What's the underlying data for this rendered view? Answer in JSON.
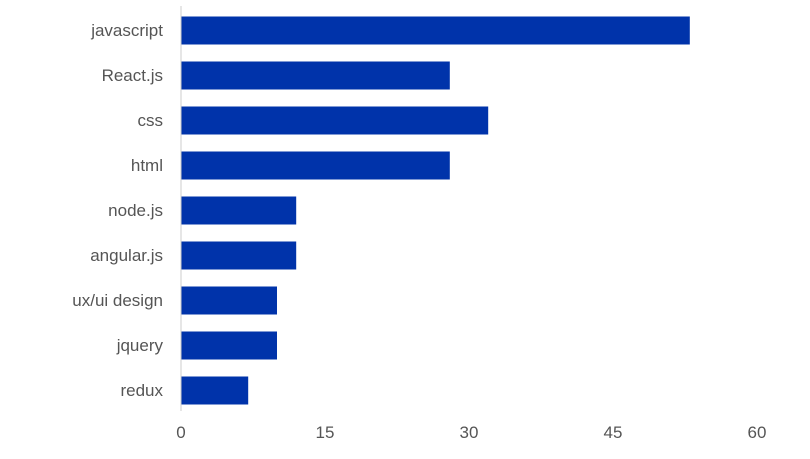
{
  "chart_data": {
    "type": "bar",
    "orientation": "horizontal",
    "title": "",
    "xlabel": "",
    "ylabel": "",
    "categories": [
      "javascript",
      "React.js",
      "css",
      "html",
      "node.js",
      "angular.js",
      "ux/ui design",
      "jquery",
      "redux"
    ],
    "values": [
      53,
      28,
      32,
      28,
      12,
      12,
      10,
      10,
      7
    ],
    "xlim": [
      0,
      60
    ],
    "xticks": [
      "0",
      "15",
      "30",
      "45",
      "60"
    ],
    "grid": false,
    "legend": "none",
    "bar_color": "#0033AA"
  }
}
